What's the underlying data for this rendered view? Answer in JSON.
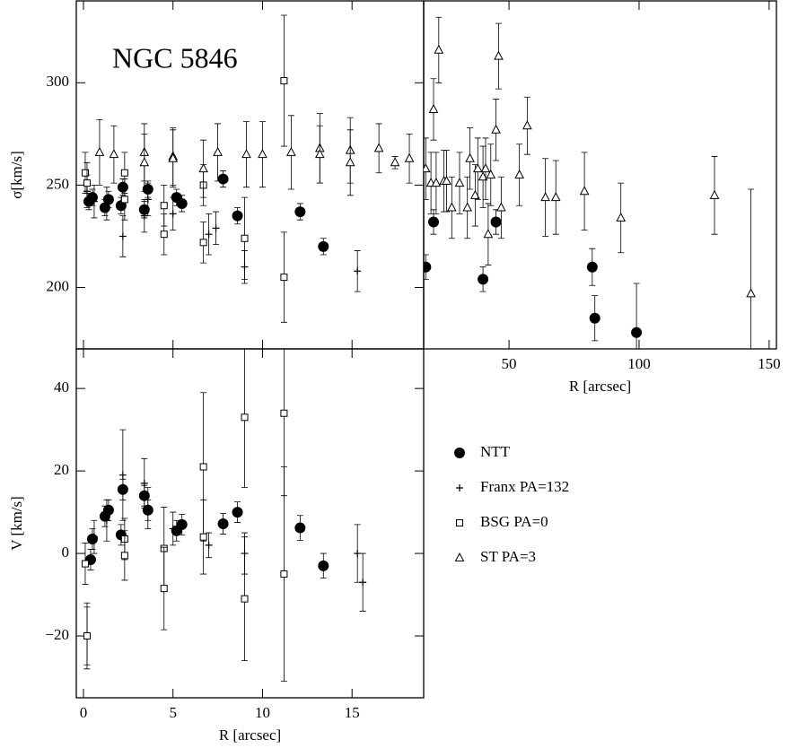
{
  "chart_data": [
    {
      "type": "scatter",
      "annotation": "NGC 5846",
      "ylabel": "σ[km/s]",
      "xlim": [
        -0.4,
        19.0
      ],
      "ylim": [
        170,
        340
      ],
      "xticks": [
        0,
        5,
        10,
        15
      ],
      "xticklabels": false,
      "yticks": [
        200,
        250,
        300
      ],
      "series": [
        {
          "name": "NTT",
          "marker": "circle",
          "x": [
            0.3,
            0.5,
            1.2,
            1.4,
            2.1,
            2.2,
            3.4,
            3.6,
            5.2,
            5.5,
            7.8,
            8.6,
            12.1,
            13.4
          ],
          "values": [
            242,
            244,
            239,
            243,
            240,
            249,
            238,
            248,
            244,
            241,
            253,
            235,
            237,
            220
          ],
          "errors": [
            4,
            4,
            4,
            4,
            4,
            4,
            4,
            4,
            4,
            4,
            4,
            4,
            4,
            4
          ]
        },
        {
          "name": "Franx PA=132",
          "marker": "plus",
          "x": [
            0.2,
            0.6,
            1.3,
            2.2,
            3.4,
            3.6,
            5.0,
            7.0,
            7.4,
            9.0,
            15.3
          ],
          "values": [
            247,
            242,
            241,
            225,
            235,
            243,
            236,
            226,
            229,
            210,
            208
          ],
          "errors": [
            8,
            8,
            8,
            10,
            8,
            8,
            8,
            10,
            8,
            8,
            10
          ]
        },
        {
          "name": "BSG PA=0",
          "marker": "square",
          "x": [
            0.1,
            0.2,
            2.3,
            2.3,
            4.5,
            4.5,
            6.7,
            6.7,
            9.0,
            11.2,
            11.2
          ],
          "values": [
            256,
            251,
            256,
            243,
            240,
            226,
            250,
            222,
            224,
            301,
            205
          ],
          "errors": [
            10,
            10,
            10,
            10,
            10,
            10,
            10,
            10,
            20,
            32,
            22
          ]
        },
        {
          "name": "ST PA=3",
          "marker": "triangle",
          "x": [
            0.9,
            1.7,
            3.4,
            3.4,
            5.0,
            5.0,
            6.7,
            7.5,
            9.1,
            10.0,
            11.6,
            13.2,
            13.2,
            14.9,
            14.9,
            16.5,
            17.4,
            18.2
          ],
          "values": [
            266,
            265,
            266,
            261,
            264,
            263,
            258,
            266,
            265,
            265,
            266,
            268,
            265,
            267,
            261,
            268,
            261,
            263
          ],
          "errors": [
            16,
            14,
            14,
            14,
            14,
            14,
            14,
            14,
            16,
            16,
            18,
            17,
            14,
            16,
            16,
            12,
            3,
            12
          ]
        }
      ]
    },
    {
      "type": "scatter",
      "xlabel": "R [arcsec]",
      "xlim": [
        17.2,
        152.8
      ],
      "ylim": [
        170,
        340
      ],
      "xticks": [
        50,
        100,
        150
      ],
      "series": [
        {
          "marker": "circle",
          "x": [
            18,
            21,
            40,
            45,
            82,
            83,
            99
          ],
          "values": [
            210,
            232,
            204,
            232,
            210,
            185,
            178
          ],
          "errors": [
            6,
            6,
            6,
            6,
            9,
            11,
            24
          ]
        },
        {
          "marker": "triangle",
          "x": [
            18,
            20,
            21,
            22,
            23,
            25,
            26,
            28,
            31,
            34,
            35,
            37,
            38,
            40,
            41,
            42,
            43,
            45,
            46,
            47,
            54,
            57,
            64,
            68,
            79,
            93,
            129,
            143
          ],
          "values": [
            258,
            251,
            287,
            251,
            316,
            252,
            252,
            239,
            251,
            239,
            263,
            245,
            258,
            254,
            258,
            226,
            255,
            277,
            313,
            239,
            255,
            279,
            244,
            244,
            247,
            234,
            245,
            197
          ],
          "errors": [
            15,
            15,
            15,
            15,
            16,
            15,
            15,
            15,
            15,
            15,
            15,
            15,
            15,
            15,
            15,
            15,
            15,
            15,
            16,
            15,
            15,
            14,
            19,
            18,
            19,
            17,
            19,
            51
          ]
        }
      ]
    },
    {
      "type": "scatter",
      "ylabel": "V [km/s]",
      "xlabel": "R [arcsec]",
      "xlim": [
        -0.4,
        19.0
      ],
      "ylim": [
        -35,
        49.6
      ],
      "xticks": [
        0,
        5,
        10,
        15
      ],
      "yticks": [
        {
          "value": -20,
          "label": "−20"
        },
        0,
        20,
        40
      ],
      "series": [
        {
          "marker": "circle",
          "x": [
            0.4,
            0.5,
            1.2,
            1.4,
            2.1,
            2.2,
            3.4,
            3.6,
            5.2,
            5.5,
            7.8,
            8.6,
            12.1,
            13.4
          ],
          "values": [
            -1.5,
            3.5,
            9,
            10.5,
            4.5,
            15.5,
            14,
            10.5,
            5.5,
            7,
            7.2,
            10,
            6.2,
            -3
          ],
          "errors": [
            2.5,
            2.5,
            2.5,
            2.5,
            2.5,
            2.5,
            2.5,
            2.5,
            2.5,
            2.5,
            2.5,
            2.5,
            3,
            3
          ]
        },
        {
          "marker": "plus",
          "x": [
            0.2,
            0.6,
            1.3,
            2.2,
            3.4,
            3.6,
            5.0,
            7.0,
            9.0,
            15.3,
            15.6
          ],
          "values": [
            -20,
            4,
            8,
            19,
            17,
            11,
            6,
            2,
            0,
            0,
            -7
          ],
          "errors": [
            8,
            4,
            5,
            11,
            6,
            5,
            4,
            3,
            5,
            7,
            7
          ]
        },
        {
          "marker": "square",
          "x": [
            0.1,
            0.2,
            2.3,
            2.3,
            4.5,
            4.5,
            6.7,
            6.7,
            9.0,
            9.0,
            11.2,
            11.2
          ],
          "values": [
            -2.5,
            -20,
            3.5,
            -0.5,
            1.2,
            -8.5,
            21,
            4,
            33,
            -11,
            34,
            -5
          ],
          "errors": [
            5,
            7,
            5,
            6,
            10,
            10,
            18,
            9,
            17,
            15,
            20,
            26
          ]
        }
      ]
    }
  ]
}
